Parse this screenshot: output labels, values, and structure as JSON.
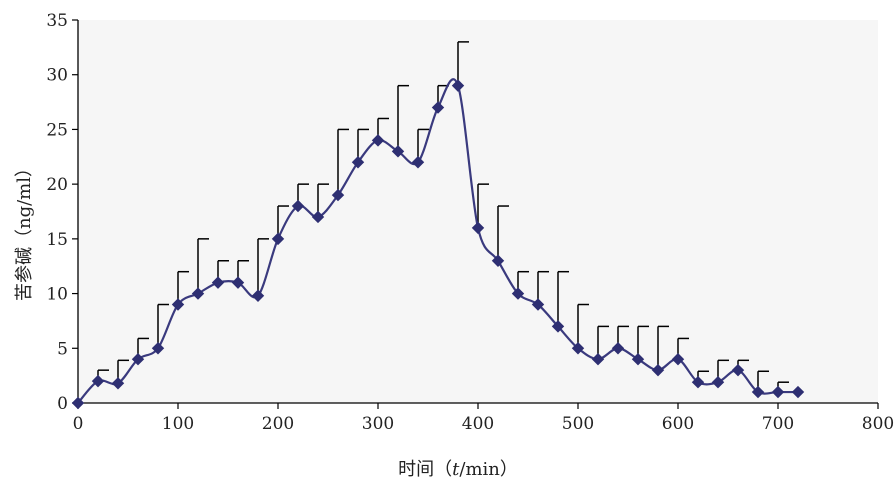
{
  "chart_data": {
    "type": "line",
    "title": "",
    "xlabel_prefix": "时间（",
    "xlabel_var": "t",
    "xlabel_suffix": "/min）",
    "ylabel": "苦参碱（ng/ml）",
    "xlim": [
      0,
      800
    ],
    "ylim": [
      0,
      35
    ],
    "xticks": [
      0,
      100,
      200,
      300,
      400,
      500,
      600,
      700,
      800
    ],
    "yticks": [
      0,
      5,
      10,
      15,
      20,
      25,
      30,
      35
    ],
    "grid": false,
    "legend": "none",
    "colors": {
      "line": "#3a3a7e",
      "marker": "#2e2f72",
      "error_bar": "#000000",
      "background": "#f6f6f6"
    },
    "series": [
      {
        "x": [
          0,
          20,
          40,
          60,
          80,
          100,
          120,
          140,
          160,
          180,
          200,
          220,
          240,
          260,
          280,
          300,
          320,
          340,
          360,
          380,
          400,
          420,
          440,
          460,
          480,
          500,
          520,
          540,
          560,
          580,
          600,
          620,
          640,
          660,
          680,
          700,
          720
        ],
        "y": [
          0,
          2,
          1.8,
          4,
          5,
          9,
          10,
          11,
          11,
          9.8,
          15,
          18,
          17,
          19,
          22,
          24,
          23,
          22,
          27,
          29,
          16,
          13,
          10,
          9,
          7,
          5,
          4,
          5,
          4,
          3,
          4,
          1.9,
          1.9,
          3,
          1,
          1,
          1
        ],
        "error_upper": [
          0,
          3,
          3.9,
          5.9,
          9,
          12,
          15,
          13,
          13,
          15,
          18,
          20,
          20,
          25,
          25,
          26,
          29,
          25,
          29,
          33,
          20,
          18,
          12,
          12,
          12,
          9,
          7,
          7,
          7,
          7,
          5.9,
          2.9,
          3.9,
          3.9,
          2.9,
          1.9,
          0
        ]
      }
    ]
  }
}
